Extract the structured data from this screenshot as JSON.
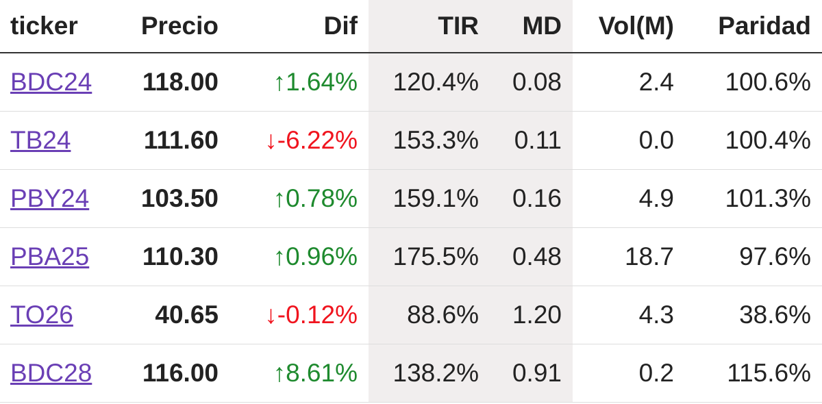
{
  "table": {
    "header": [
      "ticker",
      "Precio",
      "Dif",
      "TIR",
      "MD",
      "Vol(M)",
      "Paridad"
    ],
    "rows": [
      [
        "BDC24",
        "118.00",
        {
          "text": "↑1.64%",
          "color": "#1e8a2e"
        },
        "120.4%",
        "0.08",
        "2.4",
        "100.6%"
      ],
      [
        "TB24",
        "111.60",
        {
          "text": "↓-6.22%",
          "color": "#f0141e"
        },
        "153.3%",
        "0.11",
        "0.0",
        "100.4%"
      ],
      [
        "PBY24",
        "103.50",
        {
          "text": "↑0.78%",
          "color": "#1e8a2e"
        },
        "159.1%",
        "0.16",
        "4.9",
        "101.3%"
      ],
      [
        "PBA25",
        "110.30",
        {
          "text": "↑0.96%",
          "color": "#1e8a2e"
        },
        "175.5%",
        "0.48",
        "18.7",
        "97.6%"
      ],
      [
        "TO26",
        "40.65",
        {
          "text": "↓-0.12%",
          "color": "#f0141e"
        },
        "88.6%",
        "1.20",
        "4.3",
        "38.6%"
      ],
      [
        "BDC28",
        "116.00",
        {
          "text": "↑8.61%",
          "color": "#1e8a2e"
        },
        "138.2%",
        "0.91",
        "0.2",
        "115.6%"
      ]
    ]
  }
}
